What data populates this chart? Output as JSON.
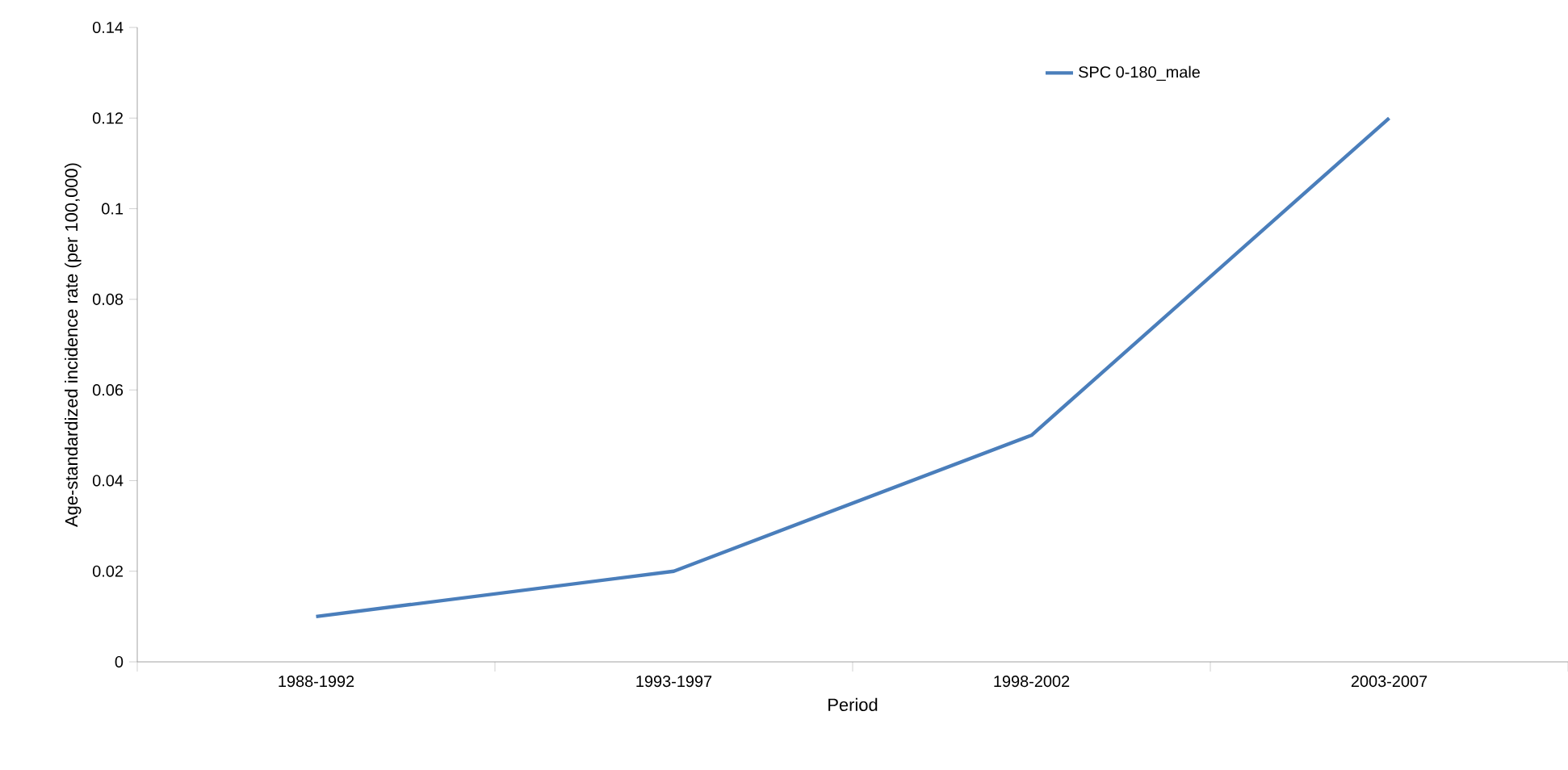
{
  "chart_data": {
    "type": "line",
    "categories": [
      "1988-1992",
      "1993-1997",
      "1998-2002",
      "2003-2007"
    ],
    "series": [
      {
        "name": "SPC 0-180_male",
        "color": "#4a7ebb",
        "values": [
          0.01,
          0.02,
          0.05,
          0.12
        ]
      }
    ],
    "xlabel": "Period",
    "ylabel": "Age-standardized incidence rate (per 100,000)",
    "ylim": [
      0,
      0.14
    ],
    "yticks": [
      0,
      0.02,
      0.04,
      0.06,
      0.08,
      0.1,
      0.12,
      0.14
    ],
    "grid": false,
    "legend": "top right",
    "marker": "none",
    "line_style": "solid"
  }
}
